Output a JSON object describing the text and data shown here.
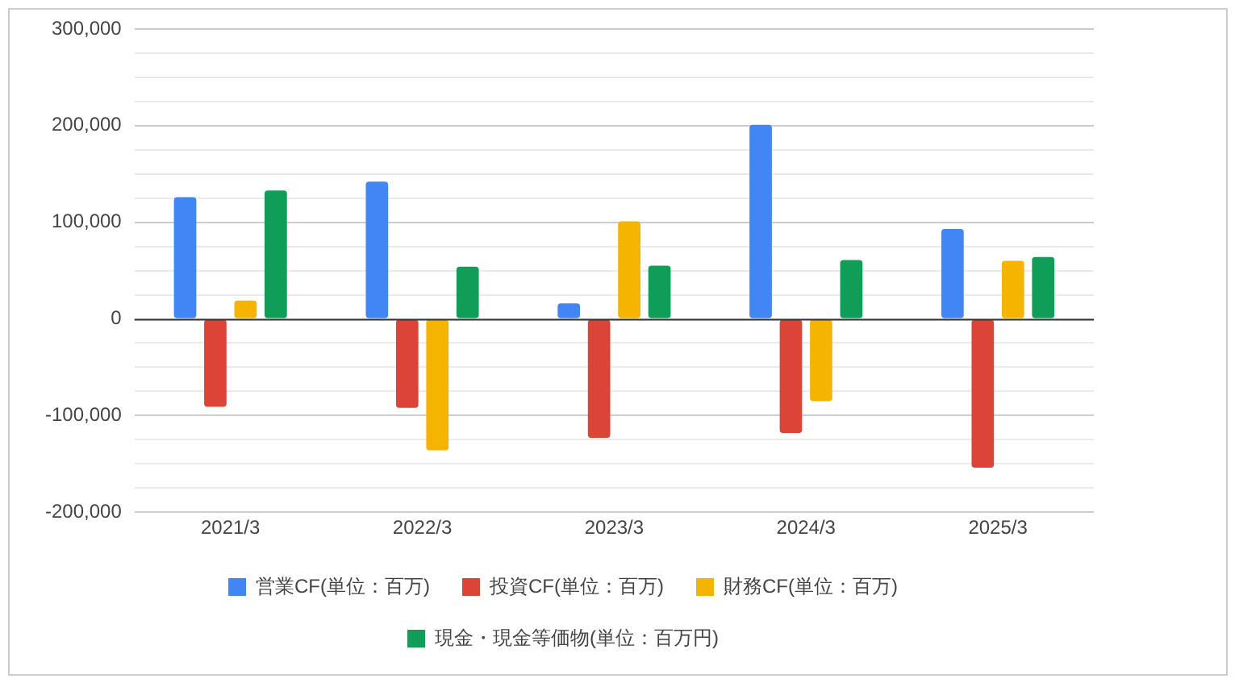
{
  "chart_data": {
    "type": "bar",
    "categories": [
      "2021/3",
      "2022/3",
      "2023/3",
      "2024/3",
      "2025/3"
    ],
    "series": [
      {
        "name": "営業CF(単位：百万)",
        "color": "#4285f4",
        "values": [
          126000,
          142000,
          16000,
          201000,
          93000
        ]
      },
      {
        "name": "投資CF(単位：百万)",
        "color": "#db4437",
        "values": [
          -91000,
          -92000,
          -123000,
          -118000,
          -154000
        ]
      },
      {
        "name": "財務CF(単位：百万)",
        "color": "#f4b400",
        "values": [
          19000,
          -136000,
          101000,
          -85000,
          60000
        ]
      },
      {
        "name": "現金・現金等価物(単位：百万円)",
        "color": "#0f9d58",
        "values": [
          133000,
          54000,
          55000,
          61000,
          64000
        ]
      }
    ],
    "ylim": [
      -200000,
      300000
    ],
    "yticks": [
      {
        "value": -200000,
        "label": "-200,000"
      },
      {
        "value": -175000,
        "label": null
      },
      {
        "value": -150000,
        "label": null
      },
      {
        "value": -125000,
        "label": null
      },
      {
        "value": -100000,
        "label": "-100,000"
      },
      {
        "value": -75000,
        "label": null
      },
      {
        "value": -50000,
        "label": null
      },
      {
        "value": -25000,
        "label": null
      },
      0,
      {
        "value": 25000,
        "label": null
      },
      {
        "value": 50000,
        "label": null
      },
      {
        "value": 75000,
        "label": null
      },
      {
        "value": 100000,
        "label": "100,000"
      },
      {
        "value": 125000,
        "label": null
      },
      {
        "value": 150000,
        "label": null
      },
      {
        "value": 175000,
        "label": null
      },
      {
        "value": 200000,
        "label": "200,000"
      },
      {
        "value": 225000,
        "label": null
      },
      {
        "value": 250000,
        "label": null
      },
      {
        "value": 275000,
        "label": null
      },
      {
        "value": 300000,
        "label": "300,000"
      }
    ],
    "grid": "y",
    "legend": "bottom"
  }
}
